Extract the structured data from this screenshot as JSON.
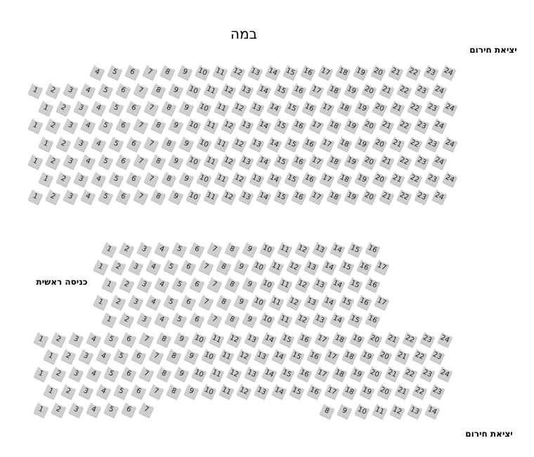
{
  "labels": {
    "stage": "במה",
    "exit_top": "יציאת חירום",
    "main_entrance": "כניסה ראשית",
    "exit_bottom": "יציאת חירום"
  },
  "colors": {
    "seat": "#cfcfcf",
    "seat_text": "#222222"
  },
  "sections": [
    {
      "rows": [
        {
          "from": 4,
          "to": 24
        },
        {
          "from": 1,
          "to": 24
        },
        {
          "from": 1,
          "to": 24
        },
        {
          "from": 1,
          "to": 24
        },
        {
          "from": 1,
          "to": 24
        },
        {
          "from": 1,
          "to": 24
        },
        {
          "from": 1,
          "to": 24
        },
        {
          "from": 1,
          "to": 24
        }
      ]
    },
    {
      "rows": [
        {
          "from": 1,
          "to": 16
        },
        {
          "from": 1,
          "to": 17
        },
        {
          "from": 1,
          "to": 16
        },
        {
          "from": 1,
          "to": 17
        },
        {
          "from": 1,
          "to": 16
        },
        {
          "from": 1,
          "to": 24
        },
        {
          "from": 1,
          "to": 23
        },
        {
          "from": 1,
          "to": 24
        },
        {
          "from": 1,
          "to": 23
        },
        {
          "from": 1,
          "to": 7
        },
        {
          "from": 8,
          "to": 14
        }
      ]
    }
  ]
}
